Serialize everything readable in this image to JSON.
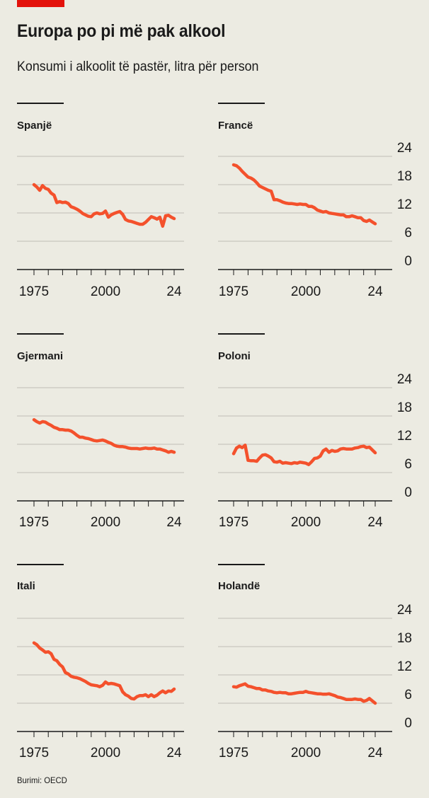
{
  "header": {
    "title": "Europa po pi më pak alkool",
    "subtitle": "Konsumi i alkoolit të pastër, litra për person"
  },
  "footer": {
    "source": "Burimi: OECD"
  },
  "colors": {
    "line": "#f4512c",
    "grid": "#c8c7be",
    "accent": "#e3120b",
    "background": "#ecebe2"
  },
  "chart_data": [
    {
      "type": "line",
      "title": "Spanjë",
      "xlim": [
        1975,
        2024
      ],
      "ylim": [
        0,
        24
      ],
      "x_ticks": [
        "1975",
        "2000",
        "24"
      ],
      "y_ticks": [],
      "grid": true,
      "series": [
        {
          "x": [
            1975,
            1976,
            1977,
            1978,
            1979,
            1980,
            1981,
            1982,
            1983,
            1984,
            1985,
            1986,
            1987,
            1988,
            1989,
            1990,
            1991,
            1992,
            1993,
            1994,
            1995,
            1996,
            1997,
            1998,
            1999,
            2000,
            2001,
            2002,
            2003,
            2004,
            2005,
            2006,
            2007,
            2008,
            2009,
            2010,
            2011,
            2012,
            2013,
            2014,
            2015,
            2016,
            2017,
            2018,
            2019,
            2020,
            2021,
            2022,
            2023,
            2024
          ],
          "y": [
            18,
            17.5,
            16.8,
            17.8,
            17.2,
            17,
            16.2,
            15.8,
            14.2,
            14.4,
            14.2,
            14.3,
            14,
            13.3,
            13.1,
            12.8,
            12.4,
            11.9,
            11.6,
            11.3,
            11.2,
            11.8,
            12,
            11.8,
            11.9,
            12.4,
            11.1,
            11.6,
            11.9,
            12.1,
            12.3,
            11.7,
            10.6,
            10.3,
            10.2,
            10,
            9.8,
            9.6,
            9.6,
            10,
            10.6,
            11.2,
            11,
            10.7,
            11.1,
            9.2,
            11.4,
            11.5,
            11.1,
            10.8
          ]
        }
      ]
    },
    {
      "type": "line",
      "title": "Francë",
      "xlim": [
        1975,
        2024
      ],
      "ylim": [
        0,
        24
      ],
      "x_ticks": [
        "1975",
        "2000",
        "24"
      ],
      "y_ticks": [
        "24",
        "18",
        "12",
        "6",
        "0"
      ],
      "grid": true,
      "series": [
        {
          "x": [
            1975,
            1976,
            1977,
            1978,
            1979,
            1980,
            1981,
            1982,
            1983,
            1984,
            1985,
            1986,
            1987,
            1988,
            1989,
            1990,
            1991,
            1992,
            1993,
            1994,
            1995,
            1996,
            1997,
            1998,
            1999,
            2000,
            2001,
            2002,
            2003,
            2004,
            2005,
            2006,
            2007,
            2008,
            2009,
            2010,
            2011,
            2012,
            2013,
            2014,
            2015,
            2016,
            2017,
            2018,
            2019,
            2020,
            2021,
            2022,
            2023,
            2024
          ],
          "y": [
            22.2,
            22,
            21.5,
            20.8,
            20.2,
            19.6,
            19.4,
            19,
            18.4,
            17.7,
            17.4,
            17.1,
            16.8,
            16.6,
            14.8,
            14.8,
            14.6,
            14.3,
            14.1,
            14,
            14,
            13.9,
            13.8,
            13.9,
            13.8,
            13.8,
            13.4,
            13.4,
            13.1,
            12.6,
            12.4,
            12.2,
            12.3,
            12,
            11.9,
            11.8,
            11.7,
            11.6,
            11.6,
            11.2,
            11.2,
            11.4,
            11.2,
            11,
            11,
            10.4,
            10.2,
            10.5,
            10.1,
            9.7
          ]
        }
      ]
    },
    {
      "type": "line",
      "title": "Gjermani",
      "xlim": [
        1975,
        2024
      ],
      "ylim": [
        0,
        24
      ],
      "x_ticks": [
        "1975",
        "2000",
        "24"
      ],
      "y_ticks": [],
      "grid": true,
      "series": [
        {
          "x": [
            1975,
            1976,
            1977,
            1978,
            1979,
            1980,
            1981,
            1982,
            1983,
            1984,
            1985,
            1986,
            1987,
            1988,
            1989,
            1990,
            1991,
            1992,
            1993,
            1994,
            1995,
            1996,
            1997,
            1998,
            1999,
            2000,
            2001,
            2002,
            2003,
            2004,
            2005,
            2006,
            2007,
            2008,
            2009,
            2010,
            2011,
            2012,
            2013,
            2014,
            2015,
            2016,
            2017,
            2018,
            2019,
            2020,
            2021,
            2022,
            2023,
            2024
          ],
          "y": [
            17.2,
            16.8,
            16.5,
            16.8,
            16.7,
            16.3,
            16,
            15.6,
            15.4,
            15.1,
            15.1,
            15,
            15,
            14.8,
            14.4,
            13.9,
            13.5,
            13.5,
            13.3,
            13.2,
            13,
            12.8,
            12.7,
            12.8,
            12.9,
            12.7,
            12.4,
            12.2,
            11.8,
            11.6,
            11.5,
            11.5,
            11.4,
            11.2,
            11.1,
            11.1,
            11.1,
            11,
            11.1,
            11.2,
            11.1,
            11.1,
            11.2,
            11,
            11,
            10.8,
            10.6,
            10.3,
            10.5,
            10.3
          ]
        }
      ]
    },
    {
      "type": "line",
      "title": "Poloni",
      "xlim": [
        1975,
        2024
      ],
      "ylim": [
        0,
        24
      ],
      "x_ticks": [
        "1975",
        "2000",
        "24"
      ],
      "y_ticks": [
        "24",
        "18",
        "12",
        "6",
        "0"
      ],
      "grid": true,
      "series": [
        {
          "x": [
            1975,
            1976,
            1977,
            1978,
            1979,
            1980,
            1981,
            1982,
            1983,
            1984,
            1985,
            1986,
            1987,
            1988,
            1989,
            1990,
            1991,
            1992,
            1993,
            1994,
            1995,
            1996,
            1997,
            1998,
            1999,
            2000,
            2001,
            2002,
            2003,
            2004,
            2005,
            2006,
            2007,
            2008,
            2009,
            2010,
            2011,
            2012,
            2013,
            2014,
            2015,
            2016,
            2017,
            2018,
            2019,
            2020,
            2021,
            2022,
            2023,
            2024
          ],
          "y": [
            10,
            11.2,
            11.6,
            11.3,
            11.8,
            8.6,
            8.5,
            8.5,
            8.4,
            9.1,
            9.7,
            9.8,
            9.5,
            9.1,
            8.3,
            8.2,
            8.4,
            8,
            8.1,
            8,
            7.9,
            8.1,
            8,
            8.2,
            8.1,
            8,
            7.7,
            8.3,
            9,
            9.1,
            9.5,
            10.6,
            11,
            10.3,
            10.7,
            10.5,
            10.6,
            11,
            11.1,
            11,
            11,
            11,
            11.2,
            11.3,
            11.5,
            11.6,
            11.3,
            11.4,
            10.8,
            10.2
          ]
        }
      ]
    },
    {
      "type": "line",
      "title": "Itali",
      "xlim": [
        1975,
        2024
      ],
      "ylim": [
        0,
        24
      ],
      "x_ticks": [
        "1975",
        "2000",
        "24"
      ],
      "y_ticks": [],
      "grid": true,
      "series": [
        {
          "x": [
            1975,
            1976,
            1977,
            1978,
            1979,
            1980,
            1981,
            1982,
            1983,
            1984,
            1985,
            1986,
            1987,
            1988,
            1989,
            1990,
            1991,
            1992,
            1993,
            1994,
            1995,
            1996,
            1997,
            1998,
            1999,
            2000,
            2001,
            2002,
            2003,
            2004,
            2005,
            2006,
            2007,
            2008,
            2009,
            2010,
            2011,
            2012,
            2013,
            2014,
            2015,
            2016,
            2017,
            2018,
            2019,
            2020,
            2021,
            2022,
            2023,
            2024
          ],
          "y": [
            18.8,
            18.4,
            17.7,
            17.3,
            16.8,
            16.9,
            16.5,
            15.3,
            15,
            14.2,
            13.7,
            12.5,
            12.2,
            11.7,
            11.5,
            11.4,
            11.2,
            10.9,
            10.6,
            10.2,
            9.9,
            9.8,
            9.7,
            9.5,
            9.8,
            10.5,
            10.1,
            10.2,
            10.1,
            9.9,
            9.7,
            8.4,
            7.8,
            7.5,
            7,
            6.9,
            7.4,
            7.6,
            7.6,
            7.8,
            7.4,
            7.8,
            7.4,
            7.7,
            8.2,
            8.6,
            8.2,
            8.6,
            8.5,
            9
          ]
        }
      ]
    },
    {
      "type": "line",
      "title": "Holandë",
      "xlim": [
        1975,
        2024
      ],
      "ylim": [
        0,
        24
      ],
      "x_ticks": [
        "1975",
        "2000",
        "24"
      ],
      "y_ticks": [
        "24",
        "18",
        "12",
        "6",
        "0"
      ],
      "grid": true,
      "series": [
        {
          "x": [
            1975,
            1976,
            1977,
            1978,
            1979,
            1980,
            1981,
            1982,
            1983,
            1984,
            1985,
            1986,
            1987,
            1988,
            1989,
            1990,
            1991,
            1992,
            1993,
            1994,
            1995,
            1996,
            1997,
            1998,
            1999,
            2000,
            2001,
            2002,
            2003,
            2004,
            2005,
            2006,
            2007,
            2008,
            2009,
            2010,
            2011,
            2012,
            2013,
            2014,
            2015,
            2016,
            2017,
            2018,
            2019,
            2020,
            2021,
            2022,
            2023,
            2024
          ],
          "y": [
            9.5,
            9.4,
            9.7,
            9.9,
            10.1,
            9.6,
            9.5,
            9.3,
            9.1,
            9.1,
            8.8,
            8.8,
            8.6,
            8.5,
            8.3,
            8.2,
            8.3,
            8.2,
            8.2,
            8,
            8,
            8.1,
            8.2,
            8.3,
            8.3,
            8.5,
            8.3,
            8.2,
            8.1,
            8,
            8,
            7.9,
            7.9,
            8,
            7.8,
            7.6,
            7.3,
            7.2,
            7,
            6.8,
            6.8,
            6.8,
            6.9,
            6.8,
            6.8,
            6.4,
            6.6,
            7,
            6.5,
            6
          ]
        }
      ]
    }
  ]
}
